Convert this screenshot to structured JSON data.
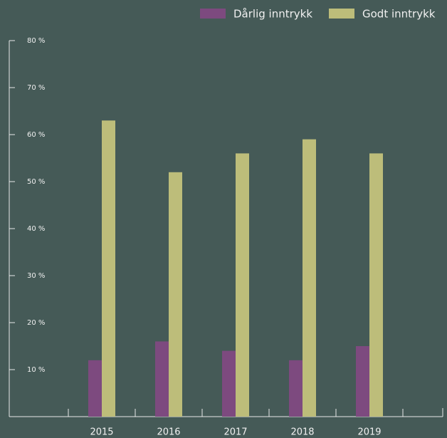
{
  "chart_data": {
    "type": "bar",
    "categories": [
      "2015",
      "2016",
      "2017",
      "2018",
      "2019"
    ],
    "series": [
      {
        "name": "Dårlig inntrykk",
        "color": "#7d4a7f",
        "values": [
          12,
          16,
          14,
          12,
          15
        ]
      },
      {
        "name": "Godt inntrykk",
        "color": "#bdbd7a",
        "values": [
          63,
          52,
          56,
          59,
          56
        ]
      }
    ],
    "ylim": [
      0,
      80
    ],
    "yticks": [
      {
        "value": 10,
        "label": "10 %"
      },
      {
        "value": 20,
        "label": "20 %"
      },
      {
        "value": 30,
        "label": "30 %"
      },
      {
        "value": 40,
        "label": "40 %"
      },
      {
        "value": 50,
        "label": "50 %"
      },
      {
        "value": 60,
        "label": "60 %"
      },
      {
        "value": 70,
        "label": "70 %"
      },
      {
        "value": 80,
        "label": "80 %"
      }
    ],
    "legend": "top-right"
  }
}
